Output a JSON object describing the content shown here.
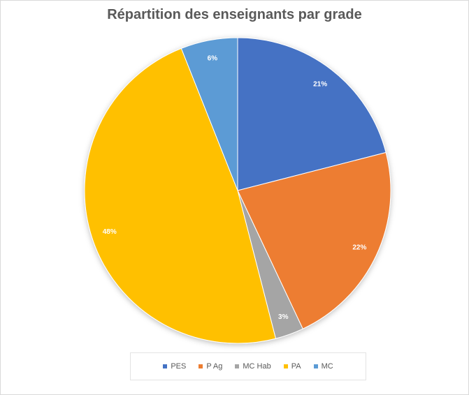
{
  "chart_data": {
    "type": "pie",
    "title": "Répartition des enseignants par grade",
    "categories": [
      "PES",
      "P Ag",
      "MC Hab",
      "PA",
      "MC"
    ],
    "values": [
      21,
      22,
      3,
      48,
      6
    ],
    "data_labels": [
      "21%",
      "22%",
      "3%",
      "48%",
      "6%"
    ],
    "colors": [
      "#4472C4",
      "#ED7D31",
      "#A5A5A5",
      "#FFC000",
      "#5B9BD5"
    ],
    "start_angle": "12 o'clock",
    "direction": "clockwise",
    "legend": "bottom"
  }
}
